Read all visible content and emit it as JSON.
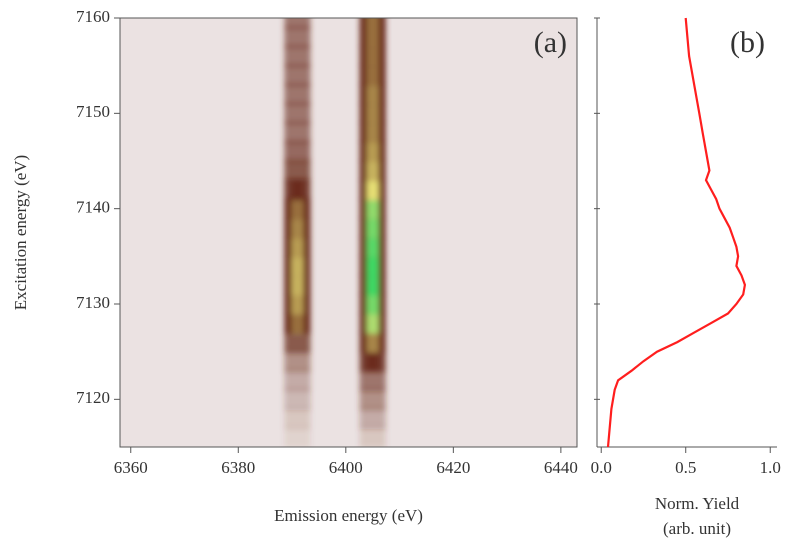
{
  "chart_data": [
    {
      "type": "heatmap",
      "annotation": "(a)",
      "xlabel": "Emission energy (eV)",
      "ylabel": "Excitation energy (eV)",
      "xlim": [
        6358,
        6443
      ],
      "xticks": [
        6360,
        6380,
        6400,
        6420,
        6440
      ],
      "ylim": [
        7115,
        7160
      ],
      "yticks": [
        7120,
        7130,
        7140,
        7150,
        7160
      ],
      "colormap": [
        "#ebe2e2",
        "#6a2c1c",
        "#e6df74",
        "#3cd864"
      ],
      "x": [
        6391,
        6405
      ],
      "y": [
        7116,
        7118,
        7120,
        7122,
        7124,
        7126,
        7128,
        7130,
        7132,
        7134,
        7136,
        7138,
        7140,
        7142,
        7144,
        7146,
        7148,
        7150,
        7152,
        7154,
        7156,
        7158,
        7160
      ],
      "z": [
        [
          0.03,
          0.05,
          0.08,
          0.1,
          0.15,
          0.25,
          0.45,
          0.55,
          0.6,
          0.6,
          0.55,
          0.5,
          0.45,
          0.3,
          0.25,
          0.22,
          0.2,
          0.2,
          0.2,
          0.2,
          0.2,
          0.2,
          0.2
        ],
        [
          0.05,
          0.1,
          0.15,
          0.2,
          0.3,
          0.5,
          0.8,
          0.9,
          1.0,
          1.0,
          0.95,
          0.9,
          0.85,
          0.7,
          0.6,
          0.55,
          0.5,
          0.5,
          0.5,
          0.45,
          0.45,
          0.45,
          0.45
        ]
      ]
    },
    {
      "type": "line",
      "annotation": "(b)",
      "xlabel": [
        "Norm. Yield",
        "(arb. unit)"
      ],
      "xlim": [
        -0.025,
        1.04
      ],
      "xticks": [
        {
          "value": 0,
          "label": "0.0"
        },
        0.5,
        {
          "value": 1,
          "label": "1.0"
        }
      ],
      "ylim": [
        7115,
        7160
      ],
      "yticks": [
        7120,
        7130,
        7140,
        7150,
        7160
      ],
      "series": [
        {
          "color": "#ff1e1e",
          "x": [
            7115,
            7117,
            7119,
            7121,
            7122,
            7123,
            7124,
            7125,
            7126,
            7127,
            7128,
            7129,
            7130,
            7131,
            7132,
            7133,
            7134,
            7135,
            7136,
            7137,
            7138,
            7139,
            7140,
            7141,
            7142,
            7143,
            7144,
            7145,
            7146,
            7147,
            7148,
            7150,
            7152,
            7154,
            7156,
            7158,
            7160
          ],
          "values": [
            0.04,
            0.05,
            0.06,
            0.08,
            0.1,
            0.18,
            0.25,
            0.33,
            0.45,
            0.55,
            0.65,
            0.75,
            0.8,
            0.84,
            0.85,
            0.83,
            0.8,
            0.81,
            0.8,
            0.78,
            0.76,
            0.73,
            0.7,
            0.68,
            0.65,
            0.62,
            0.64,
            0.63,
            0.62,
            0.61,
            0.6,
            0.58,
            0.56,
            0.54,
            0.52,
            0.51,
            0.5
          ]
        }
      ]
    }
  ]
}
